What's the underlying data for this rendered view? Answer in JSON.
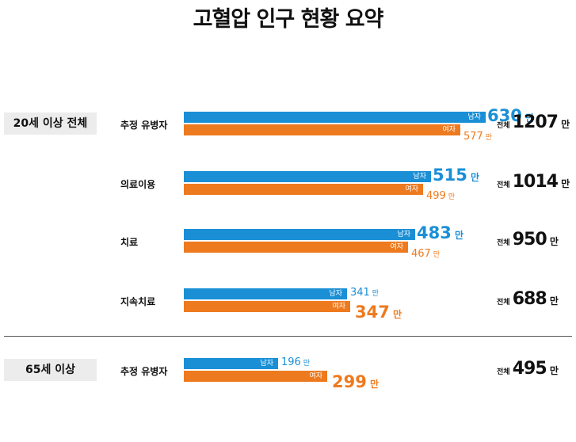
{
  "title": "고혈압 인구 현황 요약",
  "groups": [
    "20세 이상 전체",
    "65세 이상"
  ],
  "legend": {
    "male": "남자",
    "female": "여자"
  },
  "unit": "만",
  "total_label": "전체",
  "colors": {
    "male": "#1a8fd6",
    "female": "#ee7a1f"
  },
  "chart_data": {
    "type": "bar",
    "orientation": "horizontal",
    "title": "고혈압 인구 현황 요약",
    "unit": "만",
    "series_names": [
      "남자",
      "여자"
    ],
    "rows": [
      {
        "group": "20세 이상 전체",
        "category": "추정 유병자",
        "male": 630,
        "female": 577,
        "total": 1207
      },
      {
        "group": "20세 이상 전체",
        "category": "의료이용",
        "male": 515,
        "female": 499,
        "total": 1014
      },
      {
        "group": "20세 이상 전체",
        "category": "치료",
        "male": 483,
        "female": 467,
        "total": 950
      },
      {
        "group": "20세 이상 전체",
        "category": "지속치료",
        "male": 341,
        "female": 347,
        "total": 688
      },
      {
        "group": "65세 이상",
        "category": "추정 유병자",
        "male": 196,
        "female": 299,
        "total": 495
      }
    ]
  }
}
